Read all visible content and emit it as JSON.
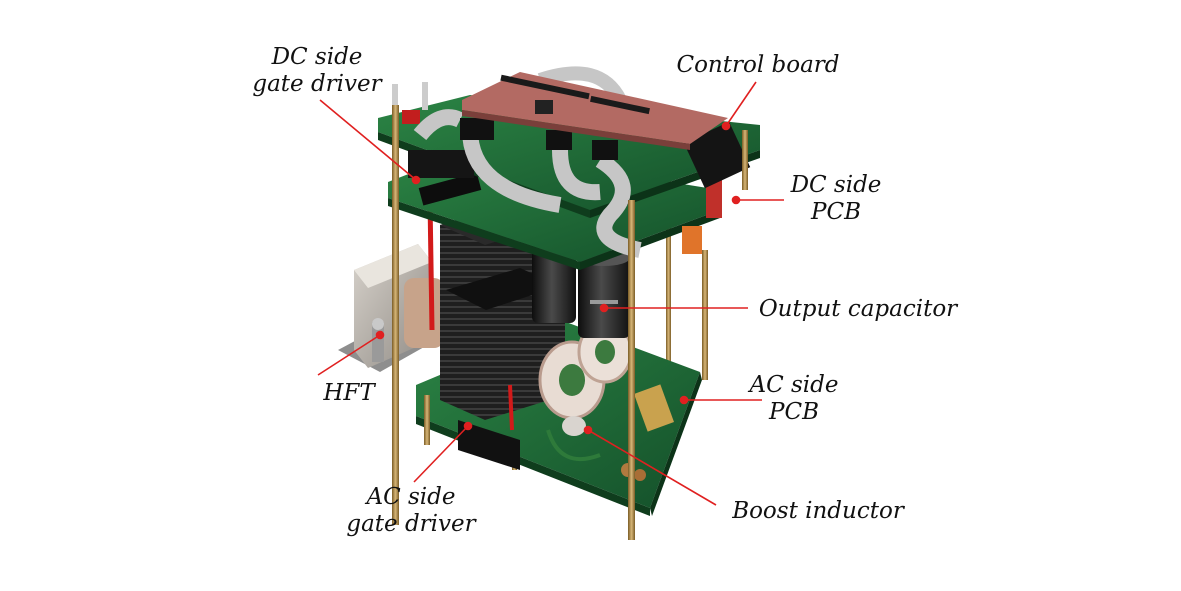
{
  "labels": {
    "dc_side_gate_driver": {
      "line1": "DC side",
      "line2": "gate driver"
    },
    "control_board": "Control board",
    "dc_side_pcb": {
      "line1": "DC side",
      "line2": "PCB"
    },
    "output_capacitor": "Output capacitor",
    "hft": "HFT",
    "ac_side_pcb": {
      "line1": "AC side",
      "line2": "PCB"
    },
    "ac_side_gate_driver": {
      "line1": "AC side",
      "line2": "gate driver"
    },
    "boost_inductor": "Boost inductor"
  },
  "colors": {
    "pcb_green": "#1f6b34",
    "pcb_dark": "#134a22",
    "leader_line": "#e02020",
    "control_board": "#b36a63",
    "heatsink": "#1c1c1c",
    "brass_rod": "#b08a45"
  }
}
